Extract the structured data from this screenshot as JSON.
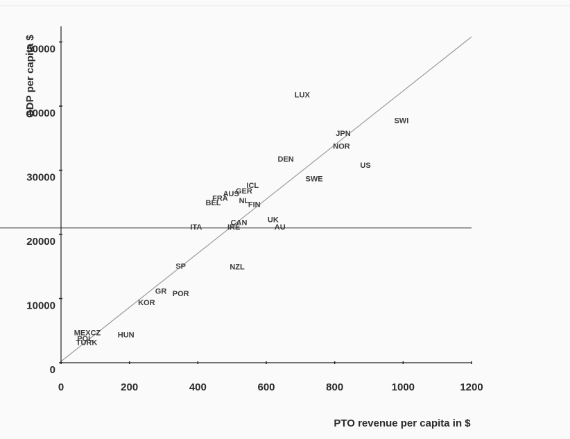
{
  "chart_data": {
    "type": "scatter",
    "title": "",
    "xlabel": "PTO revenue per capita in $",
    "ylabel": "GDP per capita $",
    "xlim": [
      0,
      1200
    ],
    "ylim": [
      0,
      52000
    ],
    "x_ticks": [
      0,
      200,
      400,
      600,
      800,
      1000,
      1200
    ],
    "y_ticks": [
      0,
      10000,
      20000,
      30000,
      40000,
      50000
    ],
    "x_tick_labels": [
      "0",
      "200",
      "400",
      "600",
      "800",
      "1000",
      "1200"
    ],
    "y_tick_labels": [
      "0",
      "10000",
      "20000",
      "30000",
      "40000",
      "50000"
    ],
    "grid": false,
    "reference_lines": [
      {
        "kind": "regression",
        "from": [
          0,
          200
        ],
        "to": [
          1200,
          50800
        ]
      },
      {
        "kind": "horizontal",
        "y": 21000
      }
    ],
    "points": [
      {
        "label": "LUX",
        "x": 705,
        "y": 41800
      },
      {
        "label": "SWI",
        "x": 995,
        "y": 37800
      },
      {
        "label": "JPN",
        "x": 825,
        "y": 35800
      },
      {
        "label": "NOR",
        "x": 820,
        "y": 33800
      },
      {
        "label": "DEN",
        "x": 657,
        "y": 31800
      },
      {
        "label": "US",
        "x": 890,
        "y": 30800
      },
      {
        "label": "SWE",
        "x": 740,
        "y": 28700
      },
      {
        "label": "ICL",
        "x": 560,
        "y": 27700
      },
      {
        "label": "GER",
        "x": 535,
        "y": 26800
      },
      {
        "label": "AUS",
        "x": 497,
        "y": 26400
      },
      {
        "label": "FRA",
        "x": 465,
        "y": 25700
      },
      {
        "label": "BEL",
        "x": 445,
        "y": 25000
      },
      {
        "label": "NL",
        "x": 535,
        "y": 25300
      },
      {
        "label": "FIN",
        "x": 565,
        "y": 24700
      },
      {
        "label": "UK",
        "x": 620,
        "y": 22300
      },
      {
        "label": "CAN",
        "x": 520,
        "y": 21900
      },
      {
        "label": "AU",
        "x": 640,
        "y": 21200
      },
      {
        "label": "IRE",
        "x": 505,
        "y": 21200
      },
      {
        "label": "ITA",
        "x": 395,
        "y": 21200
      },
      {
        "label": "SP",
        "x": 350,
        "y": 15100
      },
      {
        "label": "NZL",
        "x": 515,
        "y": 15000
      },
      {
        "label": "GR",
        "x": 292,
        "y": 11200
      },
      {
        "label": "POR",
        "x": 350,
        "y": 10800
      },
      {
        "label": "KOR",
        "x": 250,
        "y": 9400
      },
      {
        "label": "MEXCZ",
        "x": 77,
        "y": 4700
      },
      {
        "label": "HUN",
        "x": 190,
        "y": 4400
      },
      {
        "label": "POL",
        "x": 70,
        "y": 3800
      },
      {
        "label": "TURK",
        "x": 75,
        "y": 3200
      }
    ],
    "colors": {
      "text": "#2a2a2a",
      "line": "#9a9a9a",
      "axis": "#222222"
    }
  }
}
